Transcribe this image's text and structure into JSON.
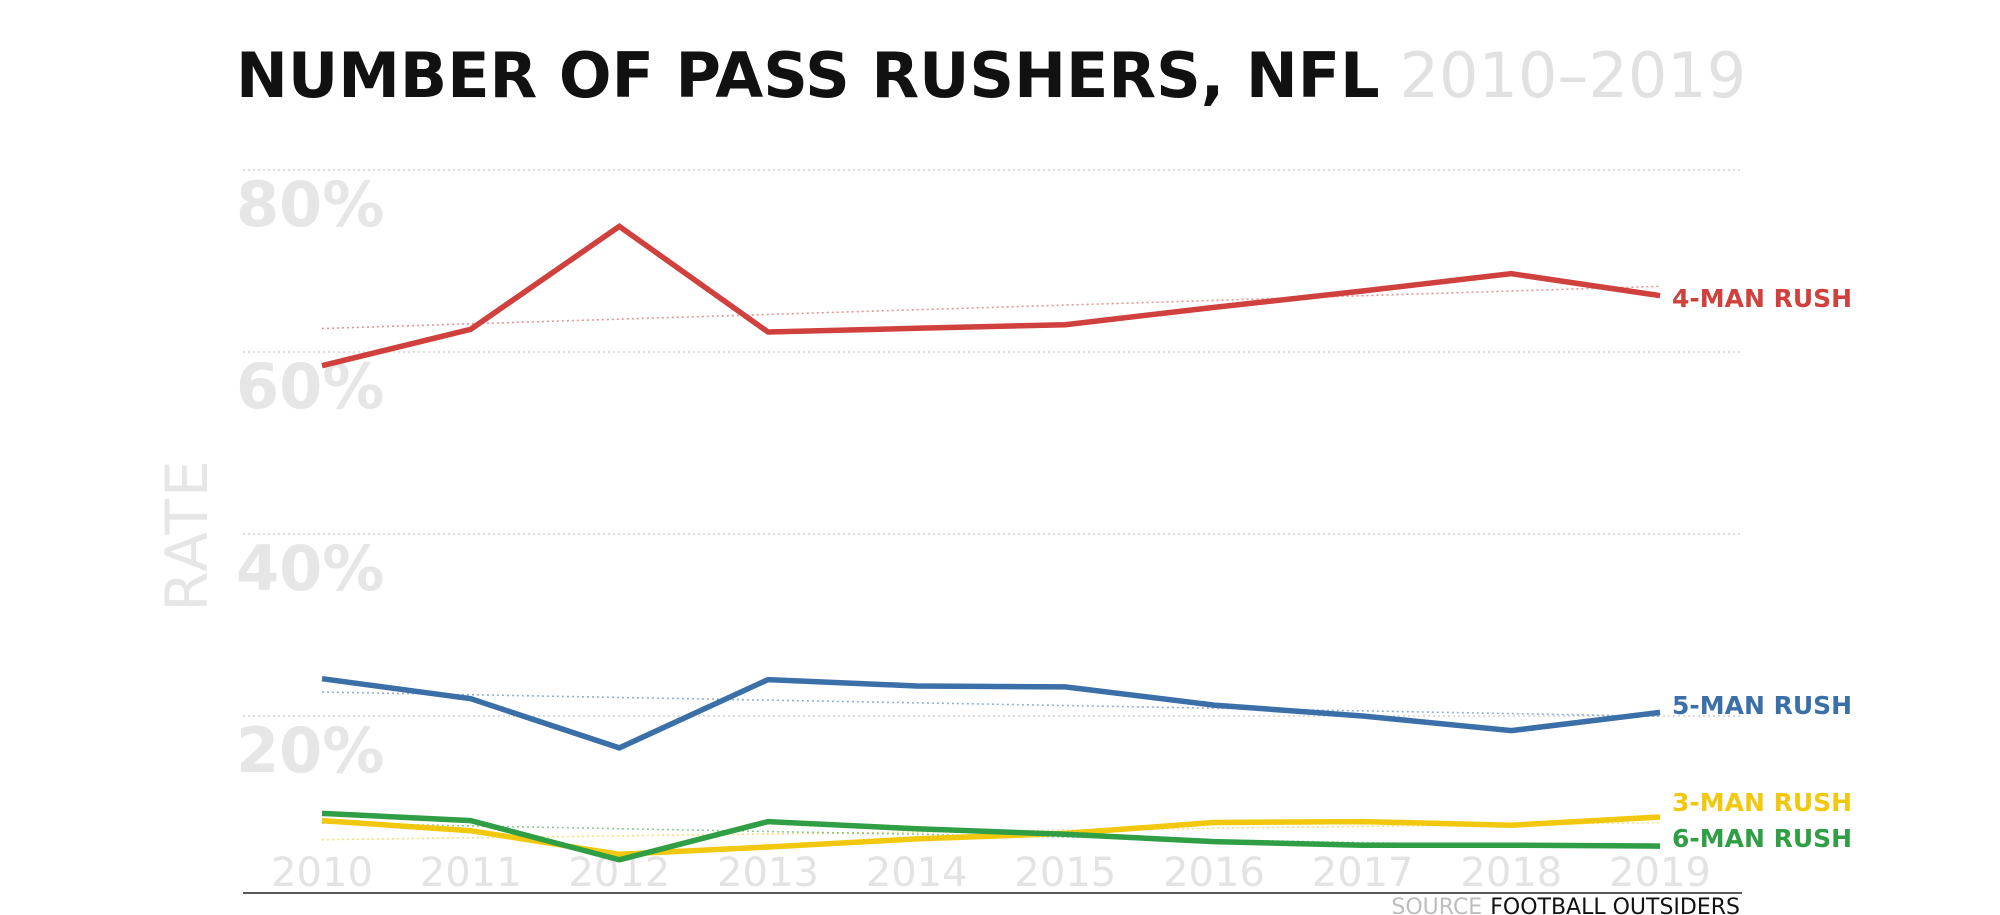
{
  "chart_data": {
    "type": "line",
    "title": "NUMBER OF PASS RUSHERS, NFL",
    "title_years": "2010–2019",
    "ylabel": "RATE",
    "xlabel": "",
    "x": [
      "2010",
      "2011",
      "2012",
      "2013",
      "2014",
      "2015",
      "2016",
      "2017",
      "2018",
      "2019"
    ],
    "ylim": [
      0,
      83
    ],
    "yticks": [
      {
        "value": 80,
        "label": "80%"
      },
      {
        "value": 60,
        "label": "60%"
      },
      {
        "value": 40,
        "label": "40%"
      },
      {
        "value": 20,
        "label": "20%"
      }
    ],
    "grid": true,
    "trendlines": true,
    "series": [
      {
        "name": "4-MAN RUSH",
        "color": "#d0403c",
        "values": [
          58.5,
          62.5,
          73.8,
          62.2,
          62.6,
          63.0,
          64.9,
          66.7,
          68.6,
          66.2
        ]
      },
      {
        "name": "5-MAN RUSH",
        "color": "#3b6fa8",
        "values": [
          24.1,
          21.9,
          16.5,
          24.0,
          23.3,
          23.2,
          21.2,
          20.0,
          18.4,
          20.4
        ]
      },
      {
        "name": "3-MAN RUSH",
        "color": "#f2c80f",
        "values": [
          8.5,
          7.4,
          4.8,
          5.6,
          6.5,
          7.1,
          8.3,
          8.4,
          8.0,
          8.9
        ]
      },
      {
        "name": "6-MAN RUSH",
        "color": "#2f9e44",
        "values": [
          9.3,
          8.5,
          4.2,
          8.4,
          7.6,
          7.0,
          6.2,
          5.8,
          5.8,
          5.7
        ]
      }
    ],
    "source_prefix": "SOURCE",
    "source_name": "FOOTBALL OUTSIDERS"
  }
}
